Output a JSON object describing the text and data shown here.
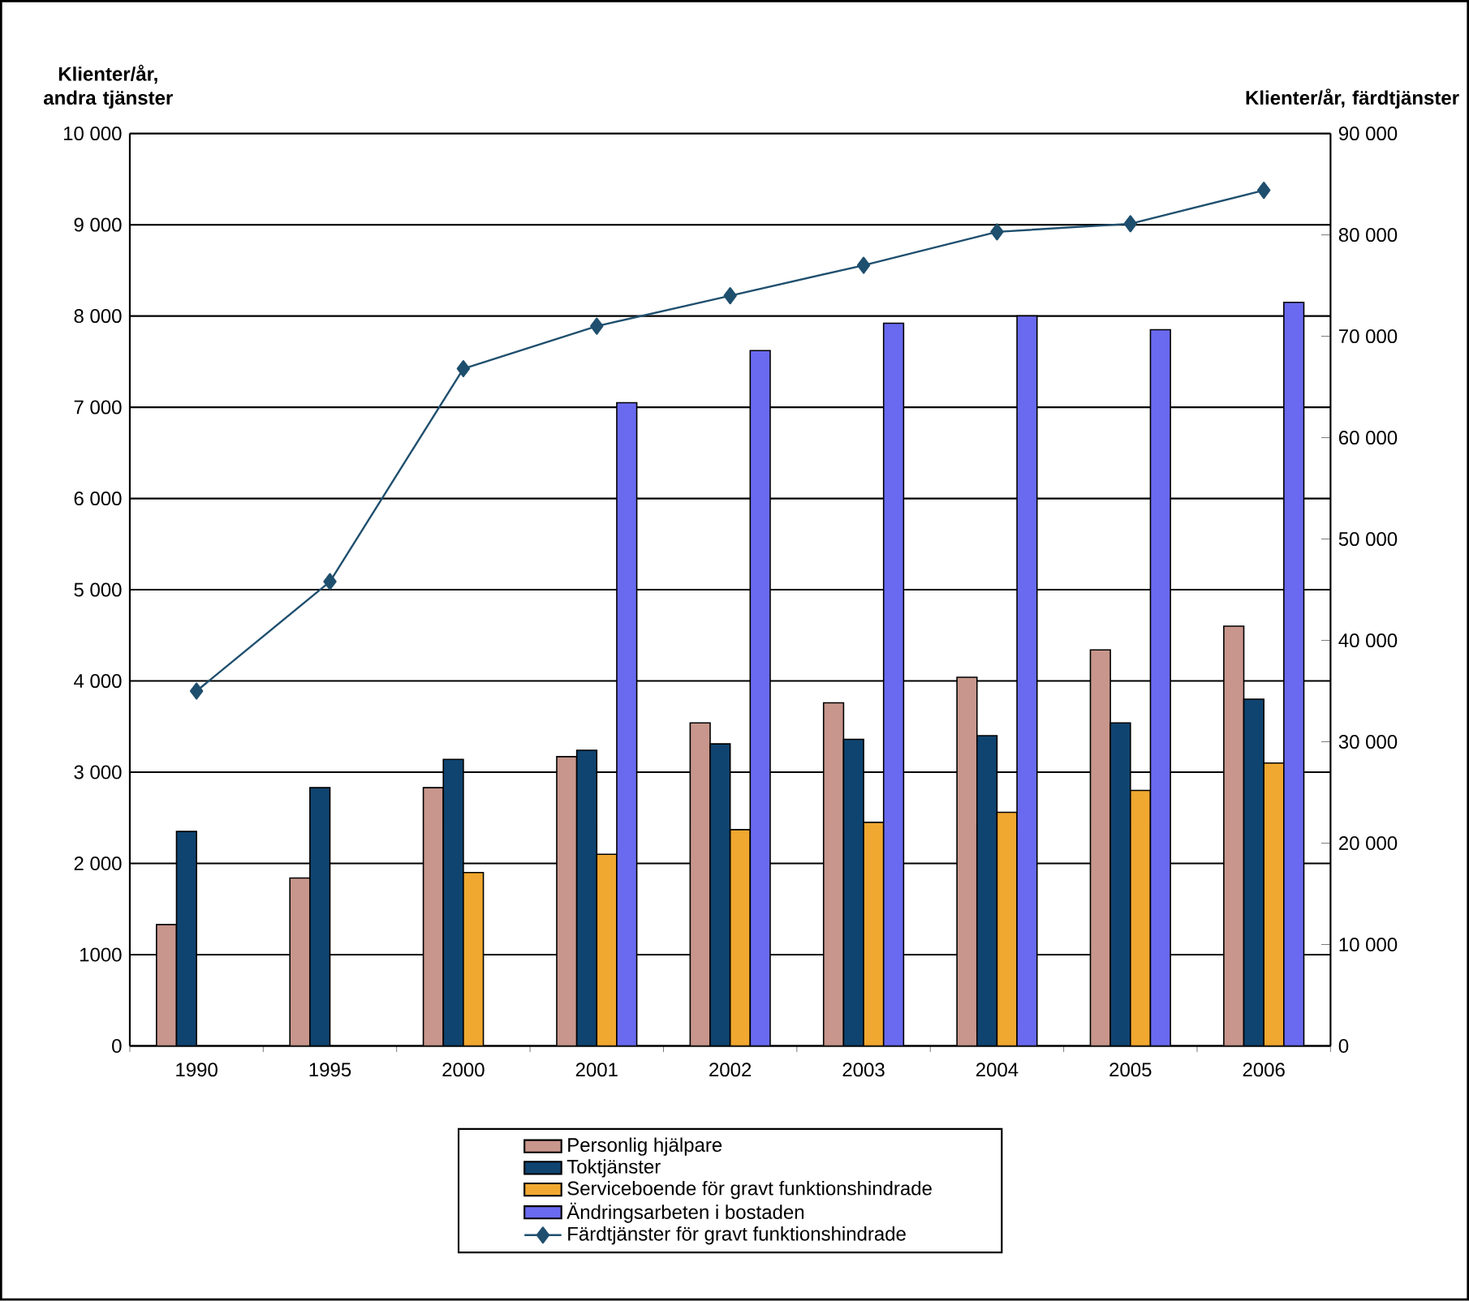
{
  "chart_data": {
    "type": "bar",
    "ylabel": "Klienter/år, andra tjänster",
    "y2label": "Klienter/år, färdtjänster",
    "categories": [
      "1990",
      "1995",
      "2000",
      "2001",
      "2002",
      "2003",
      "2004",
      "2005",
      "2006"
    ],
    "series": [
      {
        "name": "Personlig hjälpare",
        "color": "#c8968c",
        "values": [
          1330,
          1840,
          2830,
          3170,
          3540,
          3760,
          4040,
          4340,
          4600
        ]
      },
      {
        "name": "Toktjänster",
        "color": "#0f4470",
        "values": [
          2350,
          2830,
          3140,
          3240,
          3310,
          3360,
          3400,
          3540,
          3800
        ]
      },
      {
        "name": "Serviceboende för gravt funktionshindrade",
        "color": "#f0a830",
        "values": [
          null,
          null,
          1900,
          2100,
          2370,
          2450,
          2560,
          2800,
          3100
        ]
      },
      {
        "name": "Ändringsarbeten i bostaden",
        "color": "#6a6af0",
        "values": [
          null,
          null,
          null,
          7050,
          7620,
          7920,
          8000,
          7850,
          8150
        ]
      },
      {
        "name": "Färdtjänster för gravt funktionshindrade",
        "type": "line",
        "axis": "y2",
        "color": "#1f4f6e",
        "marker": "diamond",
        "values": [
          35000,
          45800,
          66800,
          71000,
          74000,
          77000,
          80300,
          81100,
          84400
        ]
      }
    ],
    "ylim": [
      0,
      10000
    ],
    "yticks": [
      0,
      {
        "value": 1000,
        "label": "1000"
      },
      {
        "value": 2000,
        "label": "2 000"
      },
      {
        "value": 3000,
        "label": "3 000"
      },
      {
        "value": 4000,
        "label": "4 000"
      },
      {
        "value": 5000,
        "label": "5 000"
      },
      {
        "value": 6000,
        "label": "6 000"
      },
      {
        "value": 7000,
        "label": "7 000"
      },
      {
        "value": 8000,
        "label": "8 000"
      },
      {
        "value": 9000,
        "label": "9 000"
      },
      {
        "value": 10000,
        "label": "10 000"
      }
    ],
    "y2lim": [
      0,
      90000
    ],
    "y2ticks": [
      0,
      {
        "value": 10000,
        "label": "10 000"
      },
      {
        "value": 20000,
        "label": "20 000"
      },
      {
        "value": 30000,
        "label": "30 000"
      },
      {
        "value": 40000,
        "label": "40 000"
      },
      {
        "value": 50000,
        "label": "50 000"
      },
      {
        "value": 60000,
        "label": "60 000"
      },
      {
        "value": 70000,
        "label": "70 000"
      },
      {
        "value": 80000,
        "label": "80 000"
      },
      {
        "value": 90000,
        "label": "90 000"
      }
    ],
    "grid": "y",
    "legend": "bottom"
  }
}
